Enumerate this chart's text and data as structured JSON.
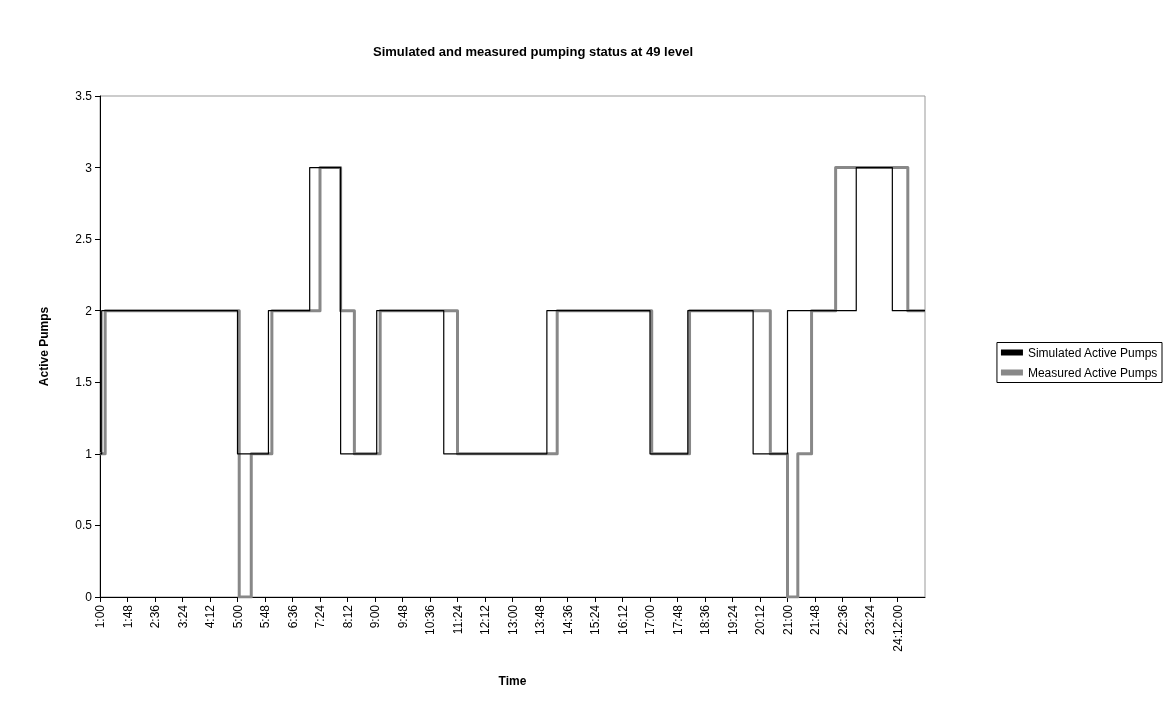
{
  "chart_data": {
    "type": "step",
    "title": "Simulated and measured pumping status at 49 level",
    "xlabel": "Time",
    "ylabel": "Active Pumps",
    "xlim": [
      1,
      25
    ],
    "xticks": [
      {
        "value": 1,
        "label": "1:00"
      },
      {
        "value": 1.8,
        "label": "1:48"
      },
      {
        "value": 2.6,
        "label": "2:36"
      },
      {
        "value": 3.4,
        "label": "3:24"
      },
      {
        "value": 4.2,
        "label": "4:12"
      },
      {
        "value": 5,
        "label": "5:00"
      },
      {
        "value": 5.8,
        "label": "5:48"
      },
      {
        "value": 6.6,
        "label": "6:36"
      },
      {
        "value": 7.4,
        "label": "7:24"
      },
      {
        "value": 8.2,
        "label": "8:12"
      },
      {
        "value": 9,
        "label": "9:00"
      },
      {
        "value": 9.8,
        "label": "9:48"
      },
      {
        "value": 10.6,
        "label": "10:36"
      },
      {
        "value": 11.4,
        "label": "11:24"
      },
      {
        "value": 12.2,
        "label": "12:12"
      },
      {
        "value": 13,
        "label": "13:00"
      },
      {
        "value": 13.8,
        "label": "13:48"
      },
      {
        "value": 14.6,
        "label": "14:36"
      },
      {
        "value": 15.4,
        "label": "15:24"
      },
      {
        "value": 16.2,
        "label": "16:12"
      },
      {
        "value": 17,
        "label": "17:00"
      },
      {
        "value": 17.8,
        "label": "17:48"
      },
      {
        "value": 18.6,
        "label": "18:36"
      },
      {
        "value": 19.4,
        "label": "19:24"
      },
      {
        "value": 20.2,
        "label": "20:12"
      },
      {
        "value": 21,
        "label": "21:00"
      },
      {
        "value": 21.8,
        "label": "21:48"
      },
      {
        "value": 22.6,
        "label": "22:36"
      },
      {
        "value": 23.4,
        "label": "23:24"
      },
      {
        "value": 24.2,
        "label": "24:12:00"
      }
    ],
    "ylim": [
      0,
      3.5
    ],
    "yticks": [
      0,
      0.5,
      1,
      1.5,
      2,
      2.5,
      3,
      3.5
    ],
    "grid": false,
    "legend": "right",
    "marker": "none",
    "line_style": "solid",
    "series": [
      {
        "name": "Simulated Active Pumps",
        "color": "#000000",
        "x": [
          1,
          1.05,
          5.0,
          5.9,
          7.1,
          8.0,
          9.05,
          11.0,
          14.0,
          17.0,
          18.1,
          20.0,
          21.0,
          23.0,
          24.05,
          25
        ],
        "values": [
          1,
          2,
          1,
          2,
          3,
          1,
          2,
          1,
          2,
          1,
          2,
          1,
          2,
          3,
          2,
          2
        ]
      },
      {
        "name": "Measured Active Pumps",
        "color": "#888888",
        "x": [
          1,
          1.15,
          5.05,
          5.4,
          6.0,
          7.4,
          8.0,
          8.4,
          9.15,
          11.4,
          14.3,
          17.05,
          18.15,
          20.5,
          21.0,
          21.3,
          21.7,
          22.4,
          24.5,
          25
        ],
        "values": [
          1,
          2,
          0,
          1,
          2,
          3,
          2,
          1,
          2,
          1,
          2,
          1,
          2,
          1,
          0,
          1,
          2,
          3,
          2,
          2
        ]
      }
    ]
  }
}
